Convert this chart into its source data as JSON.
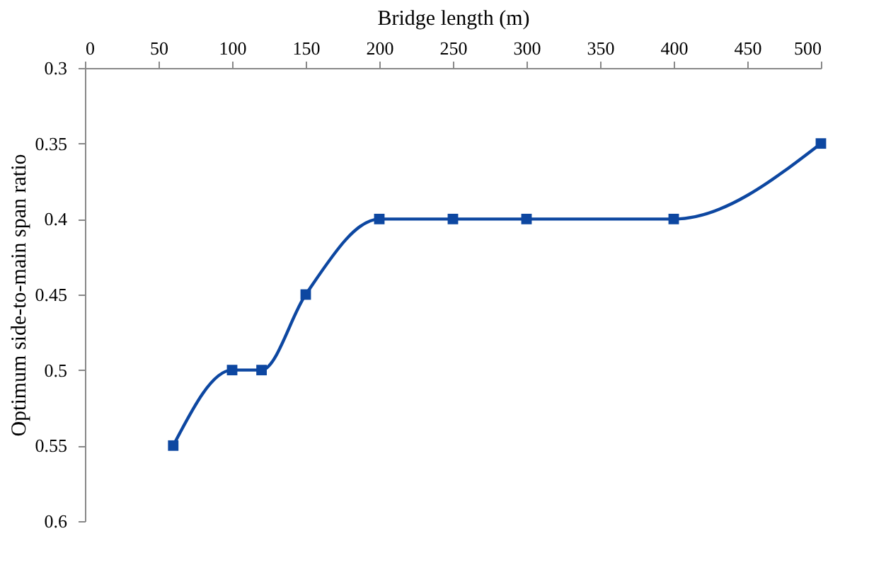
{
  "chart_data": {
    "type": "line",
    "xlabel": "Bridge length (m)",
    "ylabel": "Optimum side-to-main span ratio",
    "x": [
      60,
      100,
      120,
      150,
      200,
      250,
      300,
      400,
      500
    ],
    "series": [
      {
        "color": "#0d47a1",
        "values": [
          0.55,
          0.5,
          0.5,
          0.45,
          0.4,
          0.4,
          0.4,
          0.4,
          0.35
        ]
      }
    ],
    "xlim": [
      0,
      500
    ],
    "xticks": [
      0,
      50,
      100,
      150,
      200,
      250,
      300,
      350,
      400,
      450,
      500
    ],
    "ylim": [
      0.6,
      0.3
    ],
    "yticks": [
      0.3,
      0.35,
      0.4,
      0.45,
      0.5,
      0.55,
      0.6
    ],
    "marker": "square",
    "line_style": "solid",
    "grid": false
  }
}
